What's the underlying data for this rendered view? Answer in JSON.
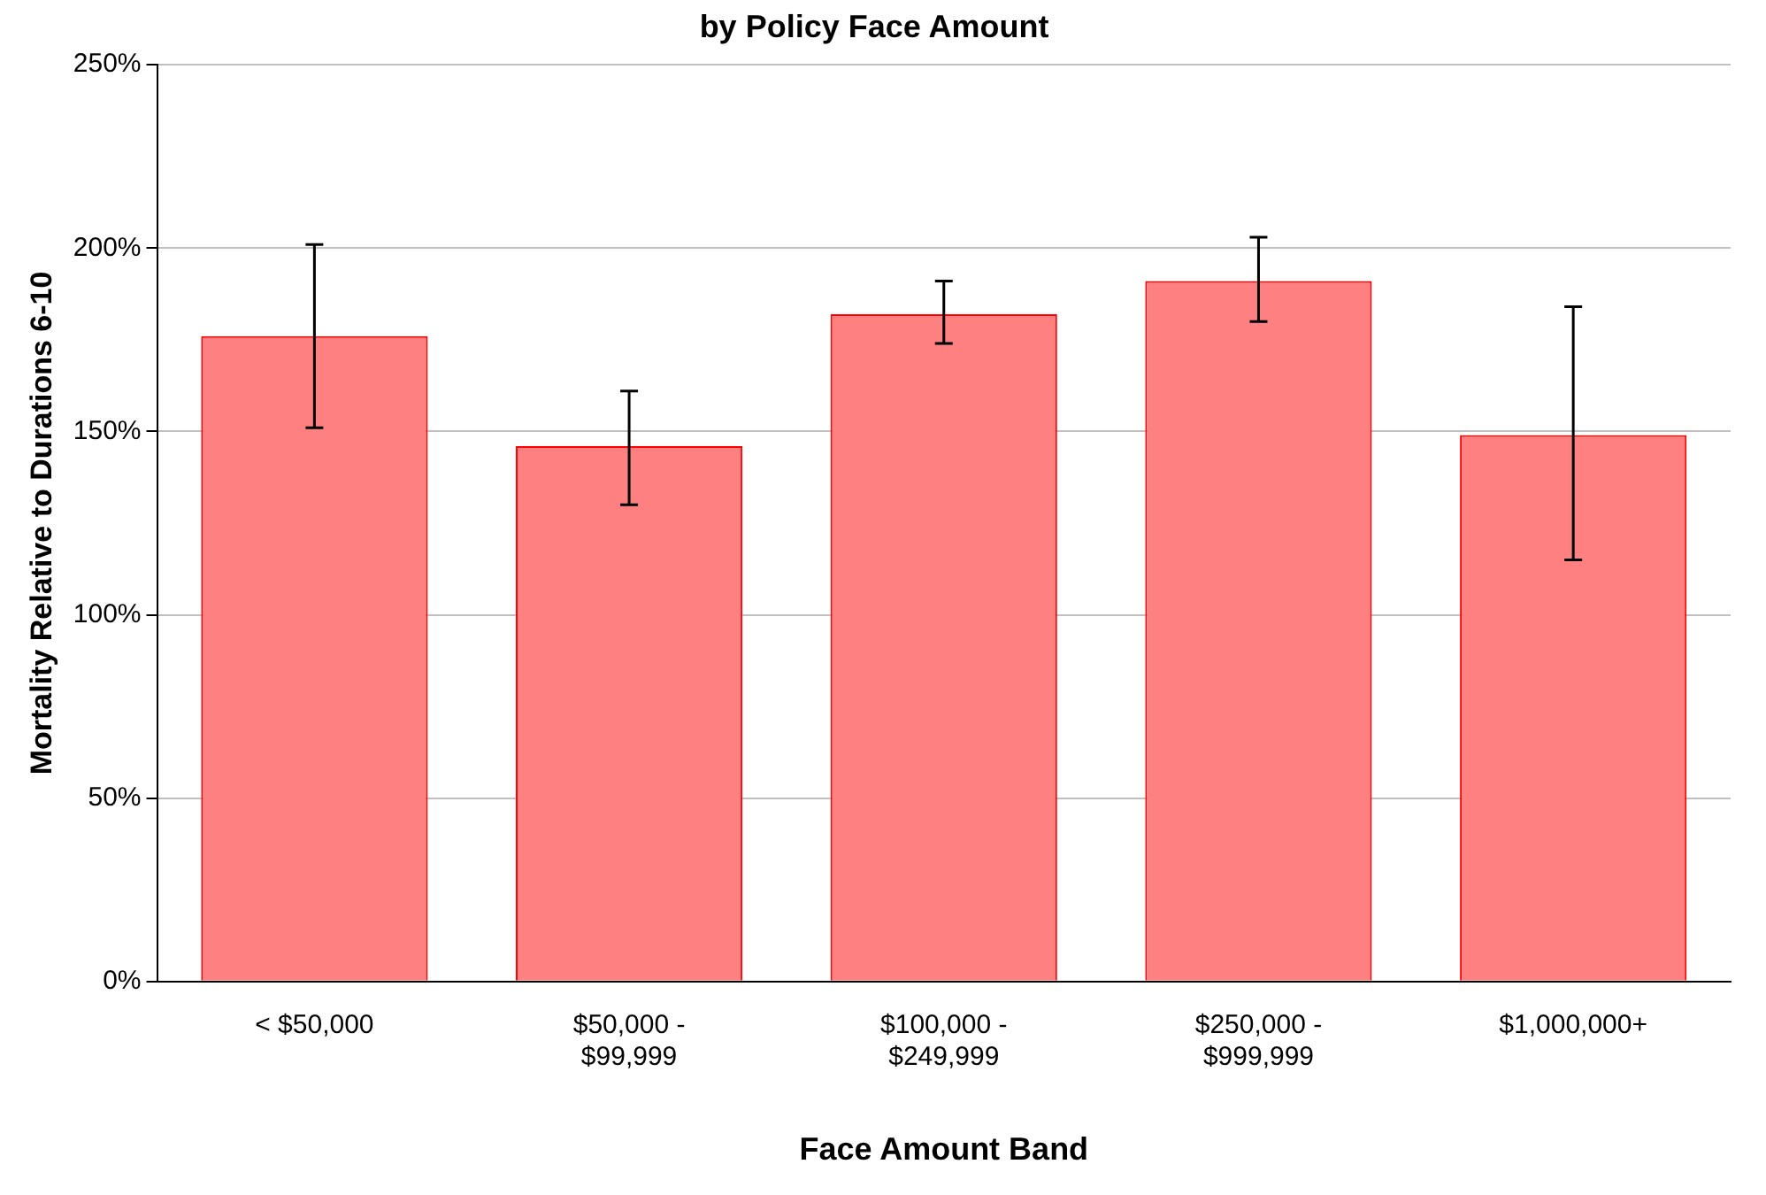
{
  "chart_data": {
    "type": "bar",
    "title": "by Policy Face Amount",
    "xlabel": "Face Amount Band",
    "ylabel": "Mortality Relative to Durations 6-10",
    "categories": [
      "< $50,000",
      "$50,000 - $99,999",
      "$100,000 - $249,999",
      "$250,000 - $999,999",
      "$1,000,000+"
    ],
    "values": [
      176,
      146,
      182,
      191,
      149
    ],
    "errors": [
      [
        151,
        201
      ],
      [
        130,
        161
      ],
      [
        174,
        191
      ],
      [
        180,
        203
      ],
      [
        115,
        184
      ]
    ],
    "color": "#ff8080",
    "ylim": [
      0,
      250
    ],
    "yticks": [
      {
        "value": 0,
        "label": "0%"
      },
      {
        "value": 50,
        "label": "50%"
      },
      {
        "value": 100,
        "label": "100%"
      },
      {
        "value": 150,
        "label": "150%"
      },
      {
        "value": 200,
        "label": "200%"
      },
      {
        "value": 250,
        "label": "250%"
      }
    ],
    "grid": "y",
    "legend": false
  }
}
